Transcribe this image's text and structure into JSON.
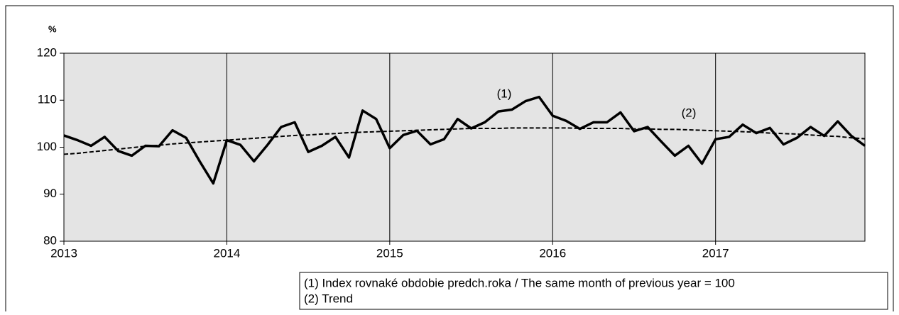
{
  "chart_data": {
    "type": "line",
    "ylabel": "%",
    "categories": [
      "2013",
      null,
      null,
      null,
      null,
      null,
      null,
      null,
      null,
      null,
      null,
      null,
      "2014",
      null,
      null,
      null,
      null,
      null,
      null,
      null,
      null,
      null,
      null,
      null,
      "2015",
      null,
      null,
      null,
      null,
      null,
      null,
      null,
      null,
      null,
      null,
      null,
      "2016",
      null,
      null,
      null,
      null,
      null,
      null,
      null,
      null,
      null,
      null,
      null,
      "2017",
      null,
      null,
      null,
      null,
      null,
      null,
      null,
      null,
      null,
      null,
      null
    ],
    "series": [
      {
        "name": "(1) Index rovnaké obdobie predch.roka / The same month of previous  year = 100",
        "color": "#000000",
        "style": "solid",
        "values": [
          102.5,
          101.5,
          100.3,
          102.2,
          99.2,
          98.2,
          100.3,
          100.2,
          103.6,
          102.0,
          97.0,
          92.3,
          101.5,
          100.5,
          97.0,
          100.5,
          104.3,
          105.3,
          99.0,
          100.3,
          102.2,
          97.8,
          107.8,
          106.0,
          99.8,
          102.6,
          103.5,
          100.6,
          101.7,
          106.0,
          104.0,
          105.3,
          107.6,
          108.0,
          109.8,
          110.7,
          106.7,
          105.6,
          103.9,
          105.3,
          105.3,
          107.4,
          103.4,
          104.3,
          101.2,
          98.2,
          100.3,
          96.5,
          101.7,
          102.2,
          104.8,
          103.0,
          104.1,
          100.6,
          102.0,
          104.3,
          102.4,
          105.5,
          102.4,
          100.3
        ]
      },
      {
        "name": "(2) Trend",
        "color": "#000000",
        "style": "dashed",
        "values": [
          98.5,
          98.7,
          99.0,
          99.3,
          99.6,
          99.9,
          100.2,
          100.4,
          100.7,
          100.9,
          101.1,
          101.3,
          101.5,
          101.7,
          101.9,
          102.1,
          102.3,
          102.5,
          102.6,
          102.8,
          102.9,
          103.1,
          103.2,
          103.3,
          103.4,
          103.5,
          103.6,
          103.7,
          103.8,
          103.9,
          104.0,
          104.0,
          104.0,
          104.1,
          104.1,
          104.1,
          104.1,
          104.1,
          104.0,
          104.0,
          104.0,
          104.0,
          103.9,
          103.9,
          103.8,
          103.8,
          103.7,
          103.6,
          103.5,
          103.4,
          103.3,
          103.2,
          103.0,
          102.9,
          102.8,
          102.6,
          102.4,
          102.3,
          102.0,
          101.8
        ]
      }
    ],
    "annotations": [
      "(1)",
      "(2)"
    ],
    "ylim": [
      80,
      120
    ],
    "yticks": [
      80,
      90,
      100,
      110,
      120
    ],
    "background": "#e4e4e4",
    "legend": "bottom-right"
  }
}
